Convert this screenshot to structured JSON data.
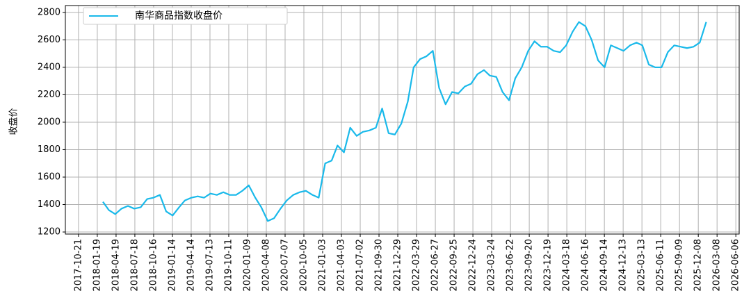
{
  "chart_data": {
    "type": "line",
    "y_label": "收盘价",
    "legend": "upper left",
    "grid": true,
    "x": [
      "2018-02-15",
      "2018-03-15",
      "2018-04-15",
      "2018-05-15",
      "2018-06-15",
      "2018-07-15",
      "2018-08-15",
      "2018-09-15",
      "2018-10-15",
      "2018-11-15",
      "2018-12-15",
      "2019-01-15",
      "2019-02-15",
      "2019-03-15",
      "2019-04-15",
      "2019-05-15",
      "2019-06-15",
      "2019-07-15",
      "2019-08-15",
      "2019-09-15",
      "2019-10-15",
      "2019-11-15",
      "2019-12-15",
      "2020-01-15",
      "2020-02-15",
      "2020-03-15",
      "2020-04-15",
      "2020-05-15",
      "2020-06-15",
      "2020-07-15",
      "2020-08-15",
      "2020-09-15",
      "2020-10-15",
      "2020-11-15",
      "2020-12-15",
      "2021-01-15",
      "2021-02-15",
      "2021-03-15",
      "2021-04-15",
      "2021-05-15",
      "2021-06-15",
      "2021-07-15",
      "2021-08-15",
      "2021-09-15",
      "2021-10-15",
      "2021-11-15",
      "2021-12-15",
      "2022-01-15",
      "2022-02-15",
      "2022-03-15",
      "2022-04-15",
      "2022-05-15",
      "2022-06-15",
      "2022-07-15",
      "2022-08-15",
      "2022-09-15",
      "2022-10-15",
      "2022-11-15",
      "2022-12-15",
      "2023-01-15",
      "2023-02-15",
      "2023-03-15",
      "2023-04-15",
      "2023-05-15",
      "2023-06-15",
      "2023-07-15",
      "2023-08-15",
      "2023-09-15",
      "2023-10-15",
      "2023-11-15",
      "2023-12-15",
      "2024-01-15",
      "2024-02-15",
      "2024-03-15",
      "2024-04-15",
      "2024-05-15",
      "2024-06-15",
      "2024-07-15",
      "2024-08-15",
      "2024-09-15",
      "2024-10-15",
      "2024-11-15",
      "2024-12-15",
      "2025-01-15",
      "2025-02-15",
      "2025-03-15",
      "2025-04-15",
      "2025-05-15",
      "2025-06-15",
      "2025-07-15",
      "2025-08-15",
      "2025-09-15",
      "2025-10-15",
      "2025-11-15",
      "2025-12-15",
      "2026-01-15"
    ],
    "series": [
      {
        "name": "南华商品指数收盘价",
        "color": "#19b9ea",
        "values": [
          1420,
          1360,
          1330,
          1370,
          1390,
          1370,
          1380,
          1440,
          1450,
          1470,
          1350,
          1320,
          1380,
          1430,
          1450,
          1460,
          1450,
          1480,
          1470,
          1490,
          1470,
          1470,
          1500,
          1540,
          1450,
          1380,
          1280,
          1300,
          1370,
          1430,
          1470,
          1490,
          1500,
          1470,
          1450,
          1700,
          1720,
          1830,
          1780,
          1960,
          1900,
          1930,
          1940,
          1960,
          2100,
          1920,
          1910,
          1990,
          2150,
          2400,
          2460,
          2480,
          2520,
          2250,
          2130,
          2220,
          2210,
          2260,
          2280,
          2350,
          2380,
          2340,
          2330,
          2220,
          2160,
          2320,
          2400,
          2520,
          2590,
          2550,
          2550,
          2520,
          2510,
          2560,
          2660,
          2730,
          2700,
          2600,
          2450,
          2400,
          2560,
          2540,
          2520,
          2560,
          2580,
          2560,
          2420,
          2400,
          2400,
          2510,
          2560,
          2550,
          2540,
          2550,
          2580,
          2730
        ]
      }
    ],
    "xlim": [
      "2017-08-19",
      "2026-06-22"
    ],
    "xticks": [
      "2017-10-21",
      "2018-01-19",
      "2018-04-19",
      "2018-07-18",
      "2018-10-16",
      "2019-01-14",
      "2019-04-14",
      "2019-07-13",
      "2019-10-11",
      "2020-01-09",
      "2020-04-08",
      "2020-07-07",
      "2020-10-05",
      "2021-01-03",
      "2021-04-03",
      "2021-07-02",
      "2021-09-30",
      "2021-12-29",
      "2022-03-29",
      "2022-06-27",
      "2022-09-25",
      "2022-12-24",
      "2023-03-24",
      "2023-06-22",
      "2023-09-20",
      "2023-12-19",
      "2024-03-18",
      "2024-06-16",
      "2024-09-14",
      "2024-12-13",
      "2025-03-13",
      "2025-06-11",
      "2025-09-09",
      "2025-12-08",
      "2026-03-08",
      "2026-06-06"
    ],
    "ylim": [
      1185,
      2850
    ],
    "yticks": [
      1200,
      1400,
      1600,
      1800,
      2000,
      2200,
      2400,
      2600,
      2800
    ]
  }
}
